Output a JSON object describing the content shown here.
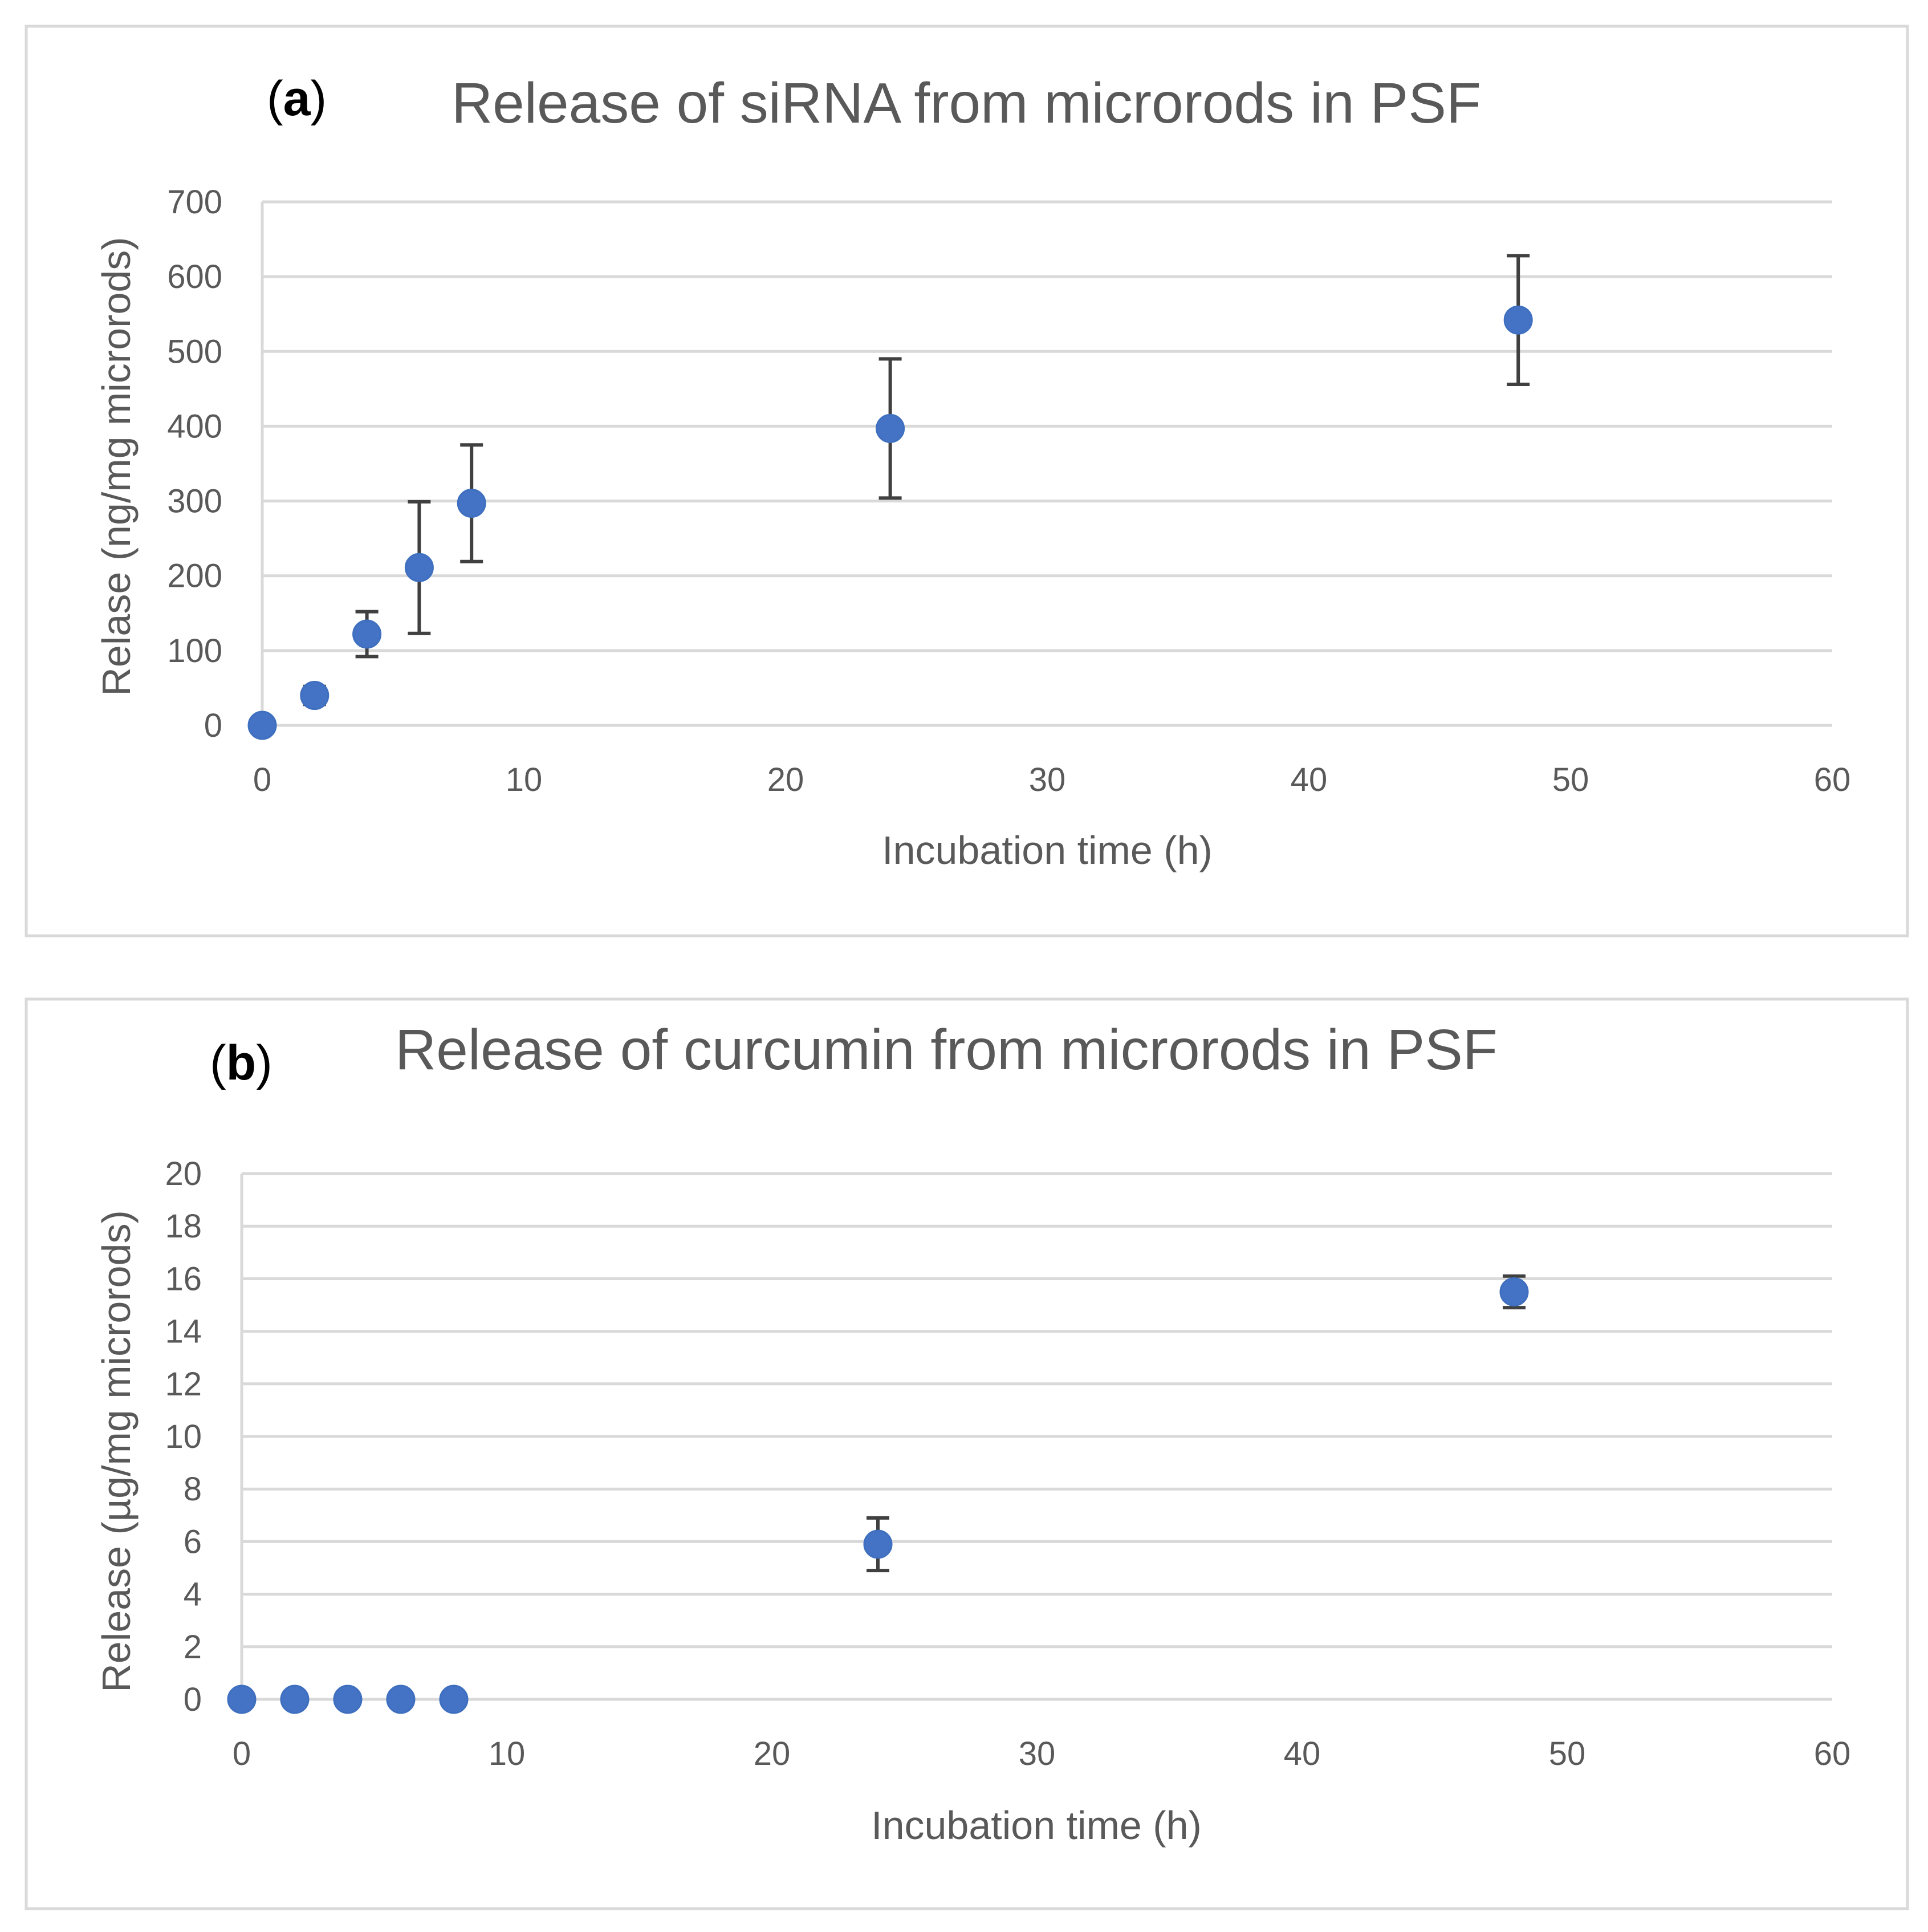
{
  "colors": {
    "point": "#4472c4",
    "error_bar": "#404040",
    "grid": "#d9d9d9",
    "text": "#595959",
    "panel_letter": "#000000"
  },
  "chart_data": [
    {
      "type": "scatter",
      "panel_label": {
        "open": "(",
        "letter": "a",
        "close": ")"
      },
      "title": "Release of siRNA from microrods in PSF",
      "xlabel": "Incubation time (h)",
      "ylabel": "Relase (ng/mg microrods)",
      "xlim": [
        0,
        60
      ],
      "ylim": [
        0,
        700
      ],
      "xticks": [
        0,
        10,
        20,
        30,
        40,
        50,
        60
      ],
      "yticks": [
        0,
        100,
        200,
        300,
        400,
        500,
        600,
        700
      ],
      "grid": "horizontal",
      "legend": "none",
      "points": [
        {
          "x": 0,
          "y": 0,
          "err": 0
        },
        {
          "x": 2,
          "y": 40,
          "err": 12
        },
        {
          "x": 4,
          "y": 122,
          "err": 30
        },
        {
          "x": 6,
          "y": 211,
          "err": 88
        },
        {
          "x": 8,
          "y": 297,
          "err": 78
        },
        {
          "x": 24,
          "y": 397,
          "err": 93
        },
        {
          "x": 48,
          "y": 542,
          "err": 86
        }
      ]
    },
    {
      "type": "scatter",
      "panel_label": {
        "open": "(",
        "letter": "b",
        "close": ")"
      },
      "title": "Release of curcumin from microrods in PSF",
      "xlabel": "Incubation time (h)",
      "ylabel": "Release (µg/mg microrods)",
      "xlim": [
        0,
        60
      ],
      "ylim": [
        0,
        20
      ],
      "xticks": [
        0,
        10,
        20,
        30,
        40,
        50,
        60
      ],
      "yticks": [
        0,
        2,
        4,
        6,
        8,
        10,
        12,
        14,
        16,
        18,
        20
      ],
      "grid": "horizontal",
      "legend": "none",
      "points": [
        {
          "x": 0,
          "y": 0,
          "err": 0
        },
        {
          "x": 2,
          "y": 0,
          "err": 0
        },
        {
          "x": 4,
          "y": 0,
          "err": 0
        },
        {
          "x": 6,
          "y": 0,
          "err": 0
        },
        {
          "x": 8,
          "y": 0,
          "err": 0
        },
        {
          "x": 24,
          "y": 5.9,
          "err": 1.0
        },
        {
          "x": 48,
          "y": 15.5,
          "err": 0.6
        }
      ]
    }
  ]
}
